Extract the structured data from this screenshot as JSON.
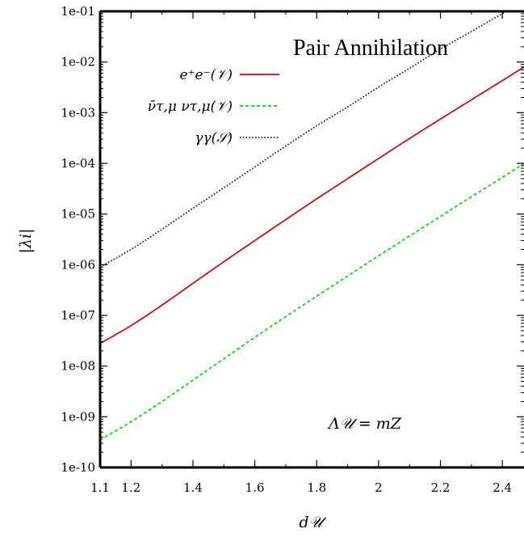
{
  "chart_data": {
    "type": "line",
    "title": "Pair Annihilation",
    "xlabel": "d𝒰",
    "ylabel": "|λi|",
    "annotation": "Λ𝒰 = mZ",
    "xlim": [
      1.1,
      2.47
    ],
    "ylim": [
      1e-10,
      0.1
    ],
    "y_scale": "log",
    "x_ticks": [
      {
        "value": 1.1,
        "label": "1.1"
      },
      {
        "value": 1.2,
        "label": "1.2"
      },
      {
        "value": 1.4,
        "label": "1.4"
      },
      {
        "value": 1.6,
        "label": "1.6"
      },
      {
        "value": 1.8,
        "label": "1.8"
      },
      {
        "value": 2.0,
        "label": "2"
      },
      {
        "value": 2.2,
        "label": "2.2"
      },
      {
        "value": 2.4,
        "label": "2.4"
      }
    ],
    "y_ticks": [
      {
        "value": 1e-10,
        "label": "1e-10"
      },
      {
        "value": 1e-09,
        "label": "1e-09"
      },
      {
        "value": 1e-08,
        "label": "1e-08"
      },
      {
        "value": 1e-07,
        "label": "1e-07"
      },
      {
        "value": 1e-06,
        "label": "1e-06"
      },
      {
        "value": 1e-05,
        "label": "1e-05"
      },
      {
        "value": 0.0001,
        "label": "1e-04"
      },
      {
        "value": 0.001,
        "label": "1e-03"
      },
      {
        "value": 0.01,
        "label": "1e-02"
      },
      {
        "value": 0.1,
        "label": "1e-01"
      }
    ],
    "legend_position": "top-left",
    "grid": false,
    "series": [
      {
        "name": "e⁺e⁻(𝒱)",
        "color": "#e00000",
        "dash": "solid",
        "x": [
          1.1,
          1.2,
          1.3,
          1.4,
          1.5,
          1.6,
          1.7,
          1.8,
          1.9,
          2.0,
          2.1,
          2.2,
          2.3,
          2.4,
          2.47
        ],
        "y": [
          2.8e-08,
          6.3e-08,
          1.6e-07,
          4.3e-07,
          1.15e-06,
          3e-06,
          7.8e-06,
          2e-05,
          5e-05,
          0.000125,
          0.00031,
          0.00075,
          0.0018,
          0.0043,
          0.008
        ]
      },
      {
        "name": "ν̄τ,μ ντ,μ(𝒱)",
        "color": "#00dd00",
        "dash": "dashed",
        "x": [
          1.1,
          1.2,
          1.3,
          1.4,
          1.5,
          1.6,
          1.7,
          1.8,
          1.9,
          2.0,
          2.1,
          2.2,
          2.3,
          2.4,
          2.47
        ],
        "y": [
          3.5e-10,
          8e-10,
          2e-09,
          5.3e-09,
          1.4e-08,
          3.7e-08,
          9.5e-08,
          2.4e-07,
          6e-07,
          1.5e-06,
          3.7e-06,
          9e-06,
          2.2e-05,
          5.3e-05,
          0.0001
        ]
      },
      {
        "name": "γγ(𝒮)",
        "color": "#0000cc",
        "dash": "dotted",
        "x": [
          1.1,
          1.2,
          1.3,
          1.4,
          1.5,
          1.6,
          1.7,
          1.8,
          1.9,
          2.0,
          2.1,
          2.2,
          2.3,
          2.4,
          2.47
        ],
        "y": [
          9e-07,
          2e-06,
          5e-06,
          1.3e-05,
          3.3e-05,
          8.5e-05,
          0.00022,
          0.00055,
          0.0013,
          0.0032,
          0.0075,
          0.018,
          0.04,
          0.09,
          0.15
        ]
      }
    ]
  }
}
